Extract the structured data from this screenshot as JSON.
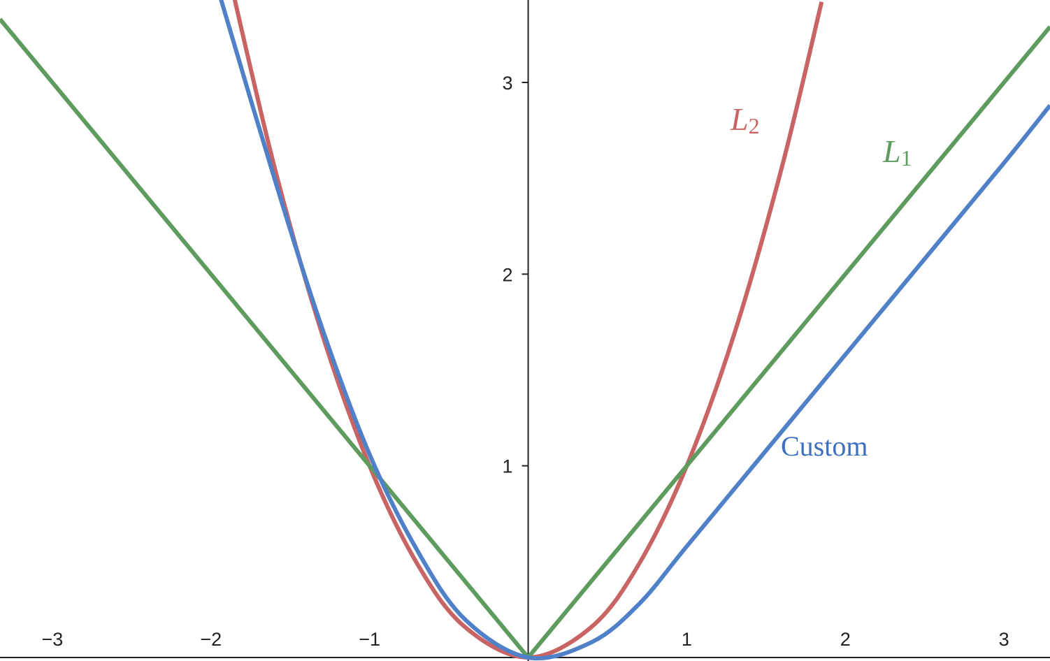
{
  "chart_data": {
    "type": "line",
    "xlim": [
      -3.33,
      3.29
    ],
    "ylim": [
      0,
      3.43
    ],
    "x_ticks": [
      -3,
      -2,
      -1,
      1,
      2,
      3
    ],
    "x_tick_labels": [
      "−3",
      "−2",
      "−1",
      "1",
      "2",
      "3"
    ],
    "y_ticks": [
      1,
      2,
      3
    ],
    "y_tick_labels": [
      "1",
      "2",
      "3"
    ],
    "grid": false,
    "legend": "inline labels",
    "series": [
      {
        "key": "l2",
        "label_main": "L",
        "label_sub": "2",
        "color": "#c96464",
        "x": [
          -1.9,
          -1.6,
          -1.3,
          -1.0,
          -0.7,
          -0.4,
          0,
          0.4,
          0.7,
          1.0,
          1.3,
          1.6,
          1.85
        ],
        "y": [
          3.61,
          2.56,
          1.69,
          1.0,
          0.49,
          0.16,
          0,
          0.16,
          0.49,
          1.0,
          1.69,
          2.56,
          3.42
        ]
      },
      {
        "key": "l1",
        "label_main": "L",
        "label_sub": "1",
        "color": "#5e9b5e",
        "x": [
          -3.33,
          0,
          3.29
        ],
        "y": [
          3.33,
          0,
          3.29
        ]
      },
      {
        "key": "custom",
        "label_text": "Custom",
        "color": "#4f80c8",
        "x": [
          -1.95,
          -1.6,
          -1.3,
          -1.0,
          -0.7,
          -0.4,
          0,
          0.4,
          0.7,
          1.0,
          1.5,
          2.0,
          2.5,
          3.0,
          3.29
        ],
        "y": [
          3.47,
          2.5,
          1.72,
          1.06,
          0.56,
          0.2,
          0,
          0.08,
          0.28,
          0.58,
          1.08,
          1.58,
          2.08,
          2.58,
          2.88
        ]
      }
    ]
  }
}
